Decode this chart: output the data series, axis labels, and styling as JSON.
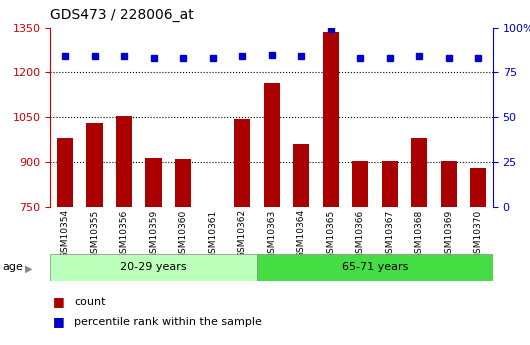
{
  "title": "GDS473 / 228006_at",
  "samples": [
    "GSM10354",
    "GSM10355",
    "GSM10356",
    "GSM10359",
    "GSM10360",
    "GSM10361",
    "GSM10362",
    "GSM10363",
    "GSM10364",
    "GSM10365",
    "GSM10366",
    "GSM10367",
    "GSM10368",
    "GSM10369",
    "GSM10370"
  ],
  "counts": [
    980,
    1030,
    1055,
    915,
    910,
    750,
    1045,
    1165,
    960,
    1335,
    905,
    905,
    980,
    905,
    880
  ],
  "percentiles": [
    84,
    84,
    84,
    83,
    83,
    83,
    84,
    85,
    84,
    99,
    83,
    83,
    84,
    83,
    83
  ],
  "group1_label": "20-29 years",
  "group2_label": "65-71 years",
  "group1_count": 7,
  "group2_count": 8,
  "ylim_left": [
    750,
    1350
  ],
  "ylim_right": [
    0,
    100
  ],
  "yticks_left": [
    750,
    900,
    1050,
    1200,
    1350
  ],
  "yticks_right": [
    0,
    25,
    50,
    75,
    100
  ],
  "bar_color": "#aa0000",
  "dot_color": "#0000cc",
  "group1_bg": "#bbffbb",
  "group2_bg": "#44dd44",
  "legend_count_label": "count",
  "legend_pct_label": "percentile rank within the sample",
  "right_axis_color": "#0000cc",
  "left_axis_color": "#cc0000",
  "grid_color": "#000000",
  "background_color": "#ffffff"
}
